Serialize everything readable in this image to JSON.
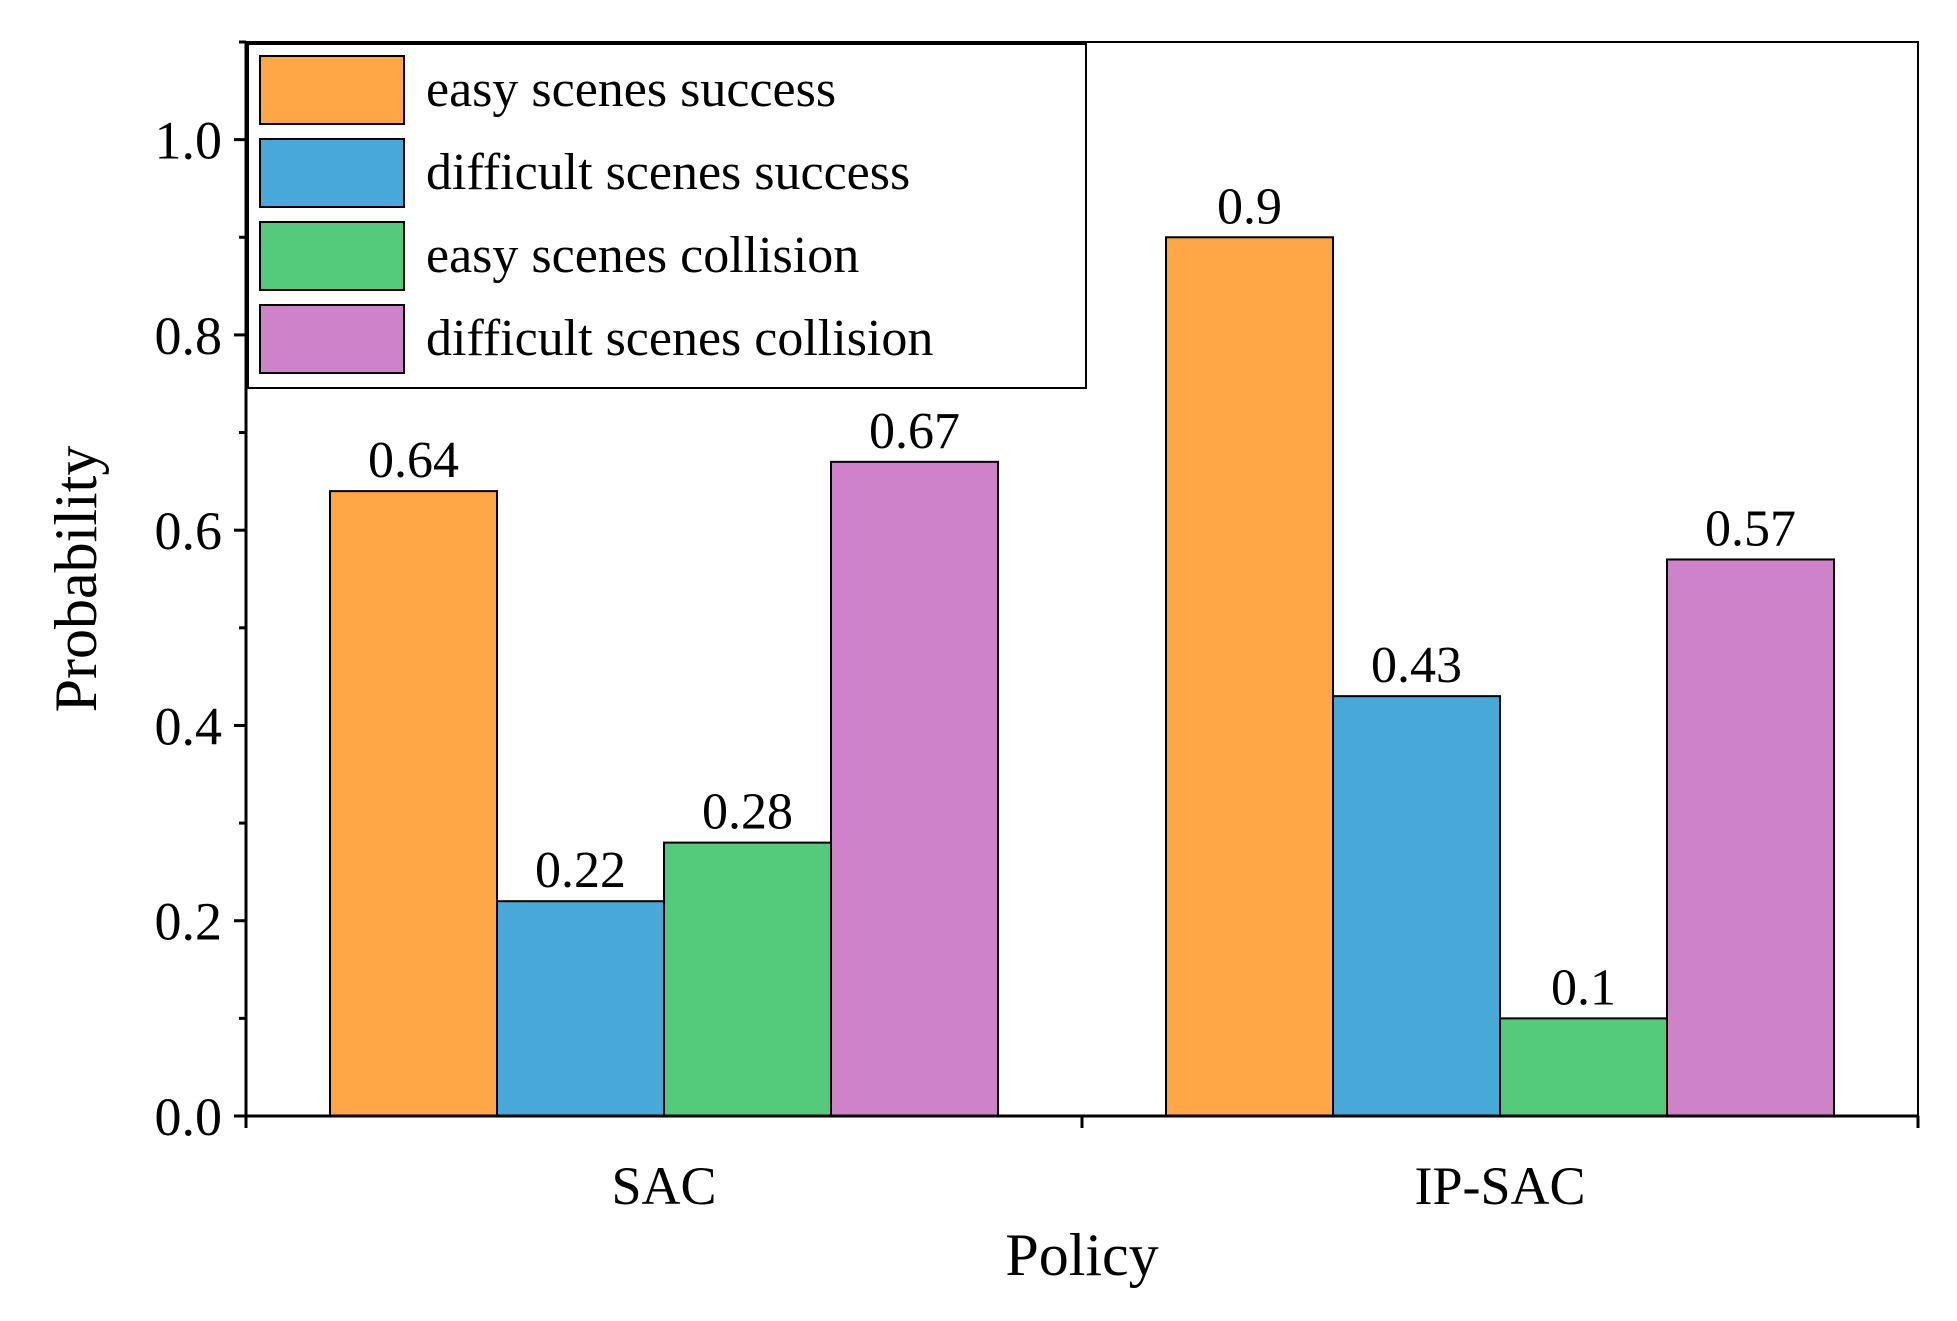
{
  "chart_data": {
    "type": "bar",
    "title": "",
    "xlabel": "Policy",
    "ylabel": "Probability",
    "ylim": [
      0,
      1.1
    ],
    "yticks": [
      "0.0",
      "0.2",
      "0.4",
      "0.6",
      "0.8",
      "1.0"
    ],
    "categories": [
      "SAC",
      "IP-SAC"
    ],
    "legend_position": "top-left",
    "series": [
      {
        "name": "easy scenes success",
        "color": "#FFA646",
        "values": [
          0.64,
          0.9
        ],
        "labels": [
          "0.64",
          "0.9"
        ]
      },
      {
        "name": "difficult scenes success",
        "color": "#48A8D8",
        "values": [
          0.22,
          0.43
        ],
        "labels": [
          "0.22",
          "0.43"
        ]
      },
      {
        "name": "easy scenes collision",
        "color": "#54CA7B",
        "values": [
          0.28,
          0.1
        ],
        "labels": [
          "0.28",
          "0.1"
        ]
      },
      {
        "name": "difficult scenes collision",
        "color": "#CE83C9",
        "values": [
          0.67,
          0.57
        ],
        "labels": [
          "0.67",
          "0.57"
        ]
      }
    ]
  }
}
